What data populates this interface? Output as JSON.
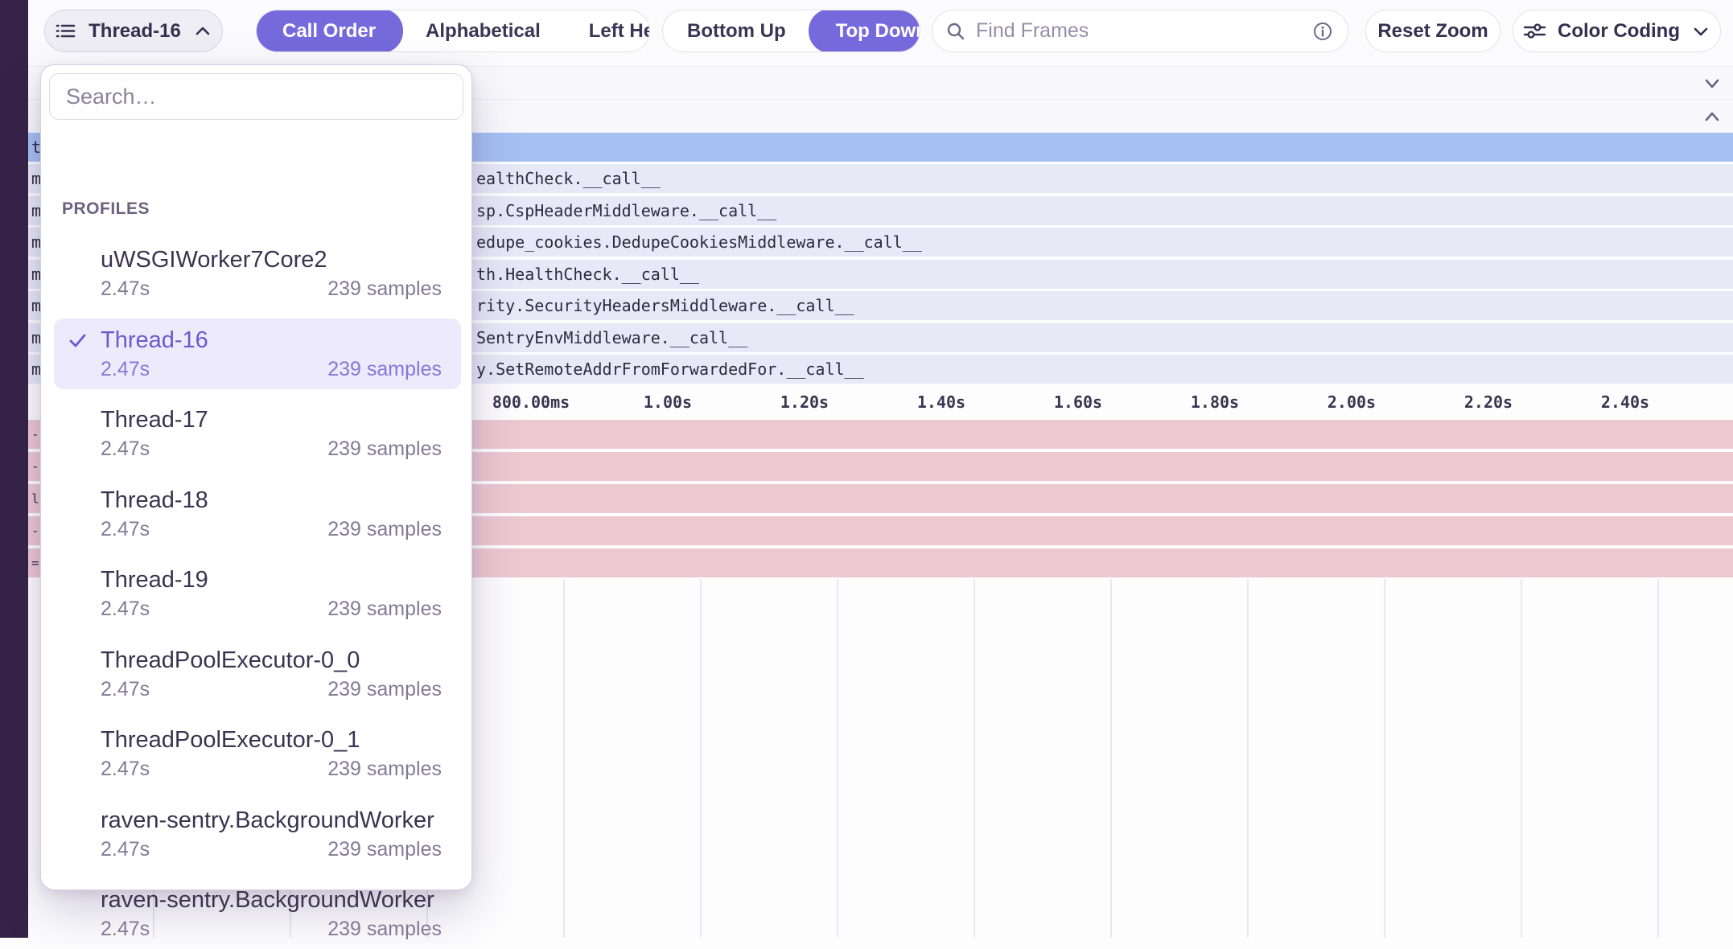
{
  "toolbar": {
    "thread_button": {
      "label": "Thread-16"
    },
    "sort_segmented": {
      "options": [
        "Call Order",
        "Alphabetical",
        "Left Heavy"
      ],
      "selected": "Call Order"
    },
    "direction_segmented": {
      "options": [
        "Bottom Up",
        "Top Down"
      ],
      "selected": "Top Down"
    },
    "find_frames": {
      "placeholder": "Find Frames"
    },
    "reset_zoom_label": "Reset Zoom",
    "color_coding_label": "Color Coding"
  },
  "thread_dropdown": {
    "search_placeholder": "Search…",
    "section_label": "PROFILES",
    "items": [
      {
        "name": "uWSGIWorker7Core2",
        "duration": "2.47s",
        "samples": "239 samples",
        "selected": false
      },
      {
        "name": "Thread-16",
        "duration": "2.47s",
        "samples": "239 samples",
        "selected": true
      },
      {
        "name": "Thread-17",
        "duration": "2.47s",
        "samples": "239 samples",
        "selected": false
      },
      {
        "name": "Thread-18",
        "duration": "2.47s",
        "samples": "239 samples",
        "selected": false
      },
      {
        "name": "Thread-19",
        "duration": "2.47s",
        "samples": "239 samples",
        "selected": false
      },
      {
        "name": "ThreadPoolExecutor-0_0",
        "duration": "2.47s",
        "samples": "239 samples",
        "selected": false
      },
      {
        "name": "ThreadPoolExecutor-0_1",
        "duration": "2.47s",
        "samples": "239 samples",
        "selected": false
      },
      {
        "name": "raven-sentry.BackgroundWorker",
        "duration": "2.47s",
        "samples": "239 samples",
        "selected": false
      },
      {
        "name": "raven-sentry.BackgroundWorker",
        "duration": "2.47s",
        "samples": "239 samples",
        "selected": false
      }
    ]
  },
  "flamegraph": {
    "selected_frame_row": {
      "sliver_text": "t"
    },
    "frame_rows": [
      {
        "sliver_text": "m",
        "label": "ealthCheck.__call__"
      },
      {
        "sliver_text": "m",
        "label": "sp.CspHeaderMiddleware.__call__"
      },
      {
        "sliver_text": "m",
        "label": "edupe_cookies.DedupeCookiesMiddleware.__call__"
      },
      {
        "sliver_text": "m",
        "label": "th.HealthCheck.__call__"
      },
      {
        "sliver_text": "m",
        "label": "rity.SecurityHeadersMiddleware.__call__"
      },
      {
        "sliver_text": "m",
        "label": "SentryEnvMiddleware.__call__"
      },
      {
        "sliver_text": "m",
        "label": "y.SetRemoteAddrFromForwardedFor.__call__"
      }
    ],
    "axis_ticks": [
      "800.00ms",
      "1.00s",
      "1.20s",
      "1.40s",
      "1.60s",
      "1.80s",
      "2.00s",
      "2.20s",
      "2.40s"
    ],
    "pink_rows": [
      {
        "sliver_text": "-"
      },
      {
        "sliver_text": "-"
      },
      {
        "sliver_text": "l"
      },
      {
        "sliver_text": "-"
      },
      {
        "sliver_text": "="
      }
    ]
  },
  "colors": {
    "accent_purple": "#7669db",
    "selected_row_blue": "#a6c0f2",
    "frame_row_lavender": "#e8e9f7",
    "pink_row": "#ecc9d1",
    "sidebar_dark": "#362347"
  }
}
